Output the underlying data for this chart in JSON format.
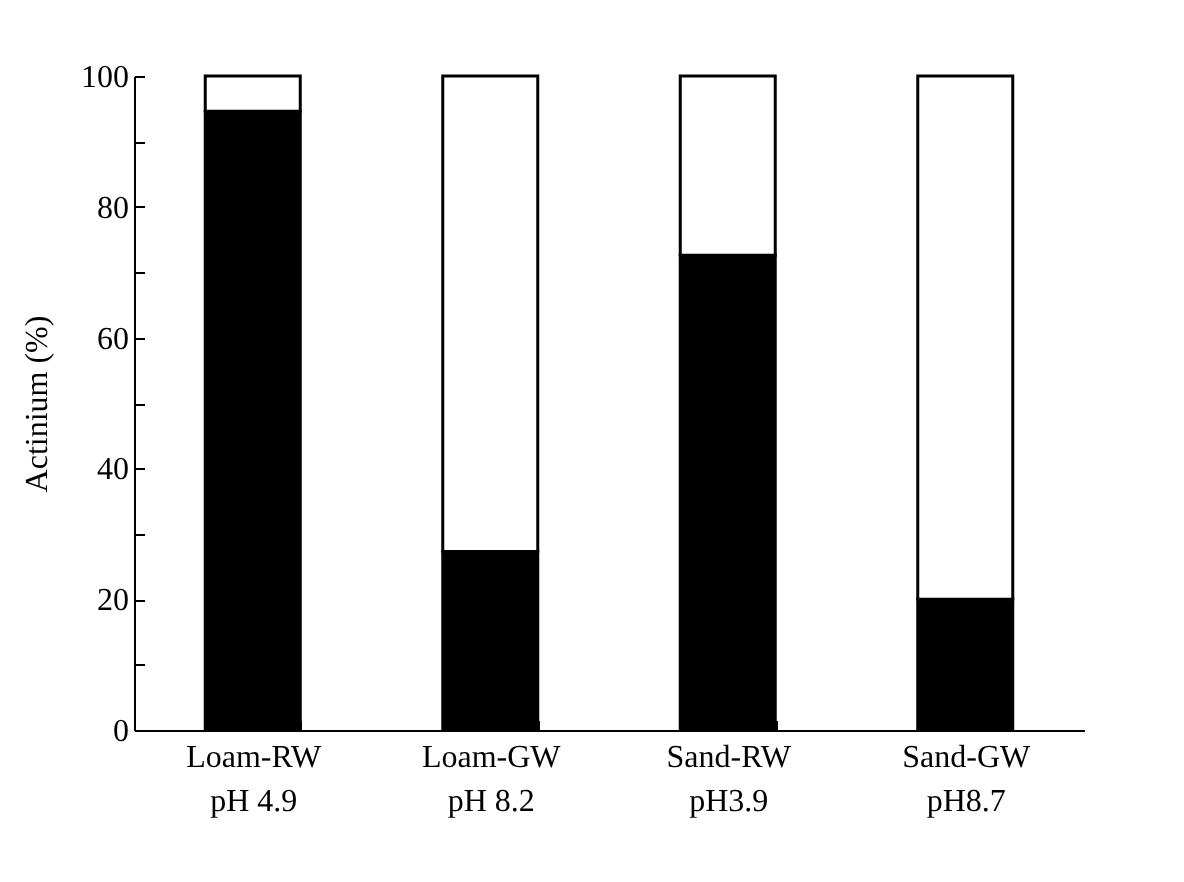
{
  "chart_data": {
    "type": "bar",
    "stacked": true,
    "ylabel": "Actinium (%)",
    "categories": [
      "Loam-RW\npH 4.9",
      "Loam-GW\npH 8.2",
      "Sand-RW\npH3.9",
      "Sand-GW\npH8.7"
    ],
    "series": [
      {
        "color": "#000000",
        "values": [
          94.6,
          27.3,
          72.6,
          20.0
        ]
      },
      {
        "color": "#ffffff",
        "values": [
          5.4,
          72.7,
          27.4,
          80.0
        ]
      }
    ],
    "ylim": [
      0,
      100
    ],
    "yticks": [
      0,
      {
        "value": 10,
        "label": null
      },
      20,
      {
        "value": 30,
        "label": null
      },
      40,
      {
        "value": 50,
        "label": null
      },
      60,
      {
        "value": 70,
        "label": null
      },
      80,
      {
        "value": 90,
        "label": null
      },
      100
    ],
    "grid": false,
    "legend": false
  }
}
